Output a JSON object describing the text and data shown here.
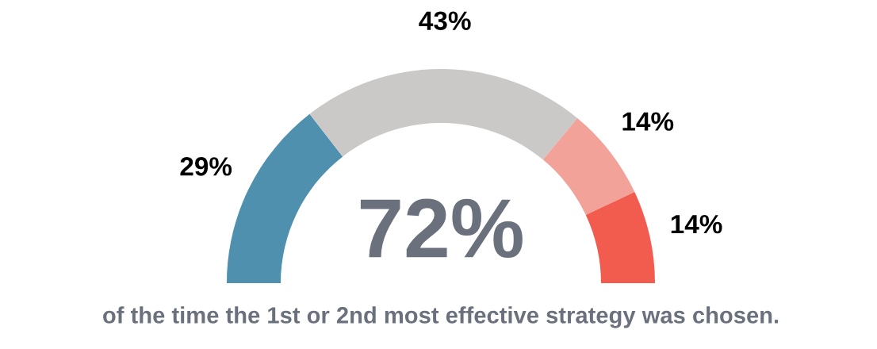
{
  "chart_data": {
    "type": "donut",
    "categories": [
      null,
      null,
      null,
      null
    ],
    "values": [
      29,
      43,
      14,
      14
    ],
    "colors": [
      "#4f90ae",
      "#cac9c8",
      "#f3a29a",
      "#f25c4f"
    ],
    "value_labels": [
      "29%",
      "43%",
      "14%",
      "14%"
    ],
    "annotations": [
      "72%",
      "of the time the 1st or 2nd most effective strategy was chosen."
    ]
  }
}
